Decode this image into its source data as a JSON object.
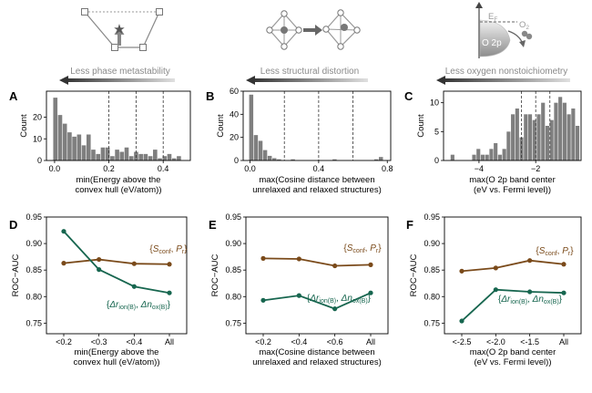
{
  "colors": {
    "bar": "#7f7f7f",
    "scf": "#7a4a1a",
    "dr": "#17664f",
    "arrow_dark": "#333333",
    "arrow_light": "#d4d4d4",
    "banner_text": "#8a8a8a"
  },
  "banners": [
    {
      "text": "Less phase metastability"
    },
    {
      "text": "Less structural distortion"
    },
    {
      "text": "Less oxygen nonstoichiometry"
    }
  ],
  "schematics": {
    "c_labels": {
      "fermi": "E",
      "fermi_sub": "F",
      "o2": "O",
      "o2_sub": "2",
      "o2p": "O 2p"
    }
  },
  "chart_data": [
    {
      "panel": "A",
      "type": "bar",
      "title": "",
      "xlabel": [
        "min(Energy above the",
        "convex hull (eV/atom))"
      ],
      "ylabel": "Count",
      "xlim": [
        -0.03,
        0.5
      ],
      "ylim": [
        0,
        32
      ],
      "xticks": [
        0.0,
        0.2,
        0.4
      ],
      "xtick_labels": [
        "0.0",
        "0.2",
        "0.4"
      ],
      "yticks": [
        0,
        10,
        20
      ],
      "ytick_labels": [
        "0",
        "10",
        "20"
      ],
      "bin_start": -0.005,
      "bin_width": 0.0175,
      "counts": [
        29,
        21,
        17,
        13,
        11,
        12,
        7,
        12,
        5,
        3,
        6,
        6,
        2,
        5,
        4,
        6,
        2,
        4,
        3,
        3,
        2,
        5,
        1,
        2,
        3,
        1,
        2
      ],
      "thresholds": [
        0.2,
        0.3,
        0.4
      ]
    },
    {
      "panel": "B",
      "type": "bar",
      "title": "",
      "xlabel": [
        "max(Cosine distance between",
        "unrelaxed and relaxed structures)"
      ],
      "ylabel": "Count",
      "xlim": [
        -0.04,
        0.82
      ],
      "ylim": [
        0,
        60
      ],
      "xticks": [
        0.0,
        0.4,
        0.8
      ],
      "xtick_labels": [
        "0.0",
        "0.4",
        "0.8"
      ],
      "yticks": [
        0,
        20,
        40,
        60
      ],
      "ytick_labels": [
        "0",
        "20",
        "40",
        "60"
      ],
      "bin_start": -0.005,
      "bin_width": 0.027,
      "counts": [
        57,
        22,
        17,
        9,
        4,
        2,
        1,
        0,
        0,
        1,
        0,
        0,
        0,
        0,
        0,
        0,
        0,
        0,
        1,
        0,
        0,
        0,
        0,
        0,
        0,
        0,
        0,
        1,
        3,
        0
      ],
      "thresholds": [
        0.2,
        0.4,
        0.6
      ]
    },
    {
      "panel": "C",
      "type": "bar",
      "title": "",
      "xlabel": [
        "max(O 2p band center",
        "(eV vs. Fermi level))"
      ],
      "ylabel": "Count",
      "xlim": [
        -5.25,
        -0.4
      ],
      "ylim": [
        0,
        12
      ],
      "xticks": [
        -4,
        -2
      ],
      "xtick_labels": [
        "−4",
        "−2"
      ],
      "yticks": [
        0,
        5,
        10
      ],
      "ytick_labels": [
        "0",
        "5",
        "10"
      ],
      "bin_start": -5.0,
      "bin_width": 0.152,
      "counts": [
        1,
        0,
        0,
        0,
        0,
        1,
        2,
        1,
        1,
        2,
        3,
        1,
        2,
        5,
        8,
        9,
        4,
        8,
        8,
        7,
        8,
        10,
        6,
        7,
        10,
        11,
        10,
        8,
        9,
        6
      ],
      "thresholds": [
        -2.5,
        -2.0,
        -1.5
      ]
    },
    {
      "panel": "D",
      "type": "line",
      "title": "",
      "xlabel": [
        "min(Energy above the",
        "convex hull (eV/atom))"
      ],
      "ylabel": "ROC−AUC",
      "categories": [
        "<0.2",
        "<0.3",
        "<0.4",
        "All"
      ],
      "ylim": [
        0.73,
        0.95
      ],
      "yticks": [
        0.75,
        0.8,
        0.85,
        0.9,
        0.95
      ],
      "ytick_labels": [
        "0.75",
        "0.80",
        "0.85",
        "0.90",
        "0.95"
      ],
      "series": [
        {
          "name": "scf",
          "values": [
            0.863,
            0.87,
            0.862,
            0.861
          ]
        },
        {
          "name": "dr",
          "values": [
            0.923,
            0.851,
            0.819,
            0.807
          ]
        }
      ]
    },
    {
      "panel": "E",
      "type": "line",
      "title": "",
      "xlabel": [
        "max(Cosine distance between",
        "unrelaxed and relaxed structures)"
      ],
      "ylabel": "ROC−AUC",
      "categories": [
        "<0.2",
        "<0.4",
        "<0.6",
        "All"
      ],
      "ylim": [
        0.73,
        0.95
      ],
      "yticks": [
        0.75,
        0.8,
        0.85,
        0.9,
        0.95
      ],
      "ytick_labels": [
        "0.75",
        "0.80",
        "0.85",
        "0.90",
        "0.95"
      ],
      "series": [
        {
          "name": "scf",
          "values": [
            0.872,
            0.871,
            0.858,
            0.86
          ]
        },
        {
          "name": "dr",
          "values": [
            0.793,
            0.802,
            0.777,
            0.807
          ]
        }
      ]
    },
    {
      "panel": "F",
      "type": "line",
      "title": "",
      "xlabel": [
        "max(O 2p band center",
        "(eV vs. Fermi level))"
      ],
      "ylabel": "ROC−AUC",
      "categories": [
        "<-2.5",
        "<-2.0",
        "<-1.5",
        "All"
      ],
      "ylim": [
        0.73,
        0.95
      ],
      "yticks": [
        0.75,
        0.8,
        0.85,
        0.9,
        0.95
      ],
      "ytick_labels": [
        "0.75",
        "0.80",
        "0.85",
        "0.90",
        "0.95"
      ],
      "series": [
        {
          "name": "scf",
          "values": [
            0.848,
            0.854,
            0.868,
            0.861
          ]
        },
        {
          "name": "dr",
          "values": [
            0.754,
            0.813,
            0.809,
            0.807
          ]
        }
      ]
    }
  ],
  "legend": {
    "scf": {
      "open": "{",
      "s": "S",
      "s_sub": "conf",
      "sep": ", ",
      "p": "P",
      "p_sub": "r",
      "close": "}"
    },
    "dr": {
      "open": "{",
      "d1": "Δr",
      "d1_sub": "ion(B)",
      "sep": ", ",
      "d2": "Δn",
      "d2_sub": "ox(B)",
      "close": "}"
    }
  }
}
